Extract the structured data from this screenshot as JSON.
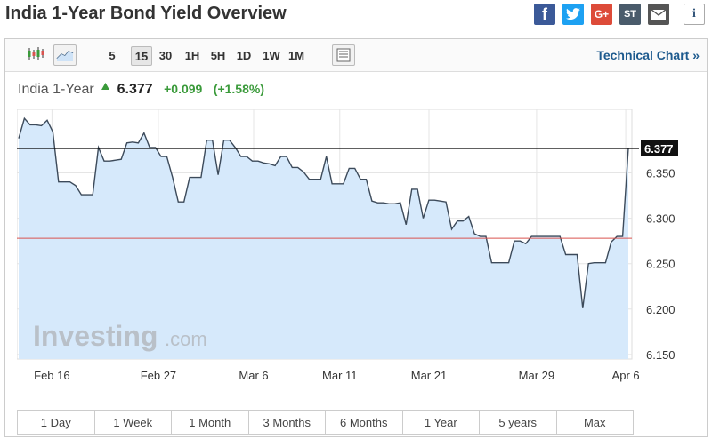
{
  "page_title": "India 1-Year Bond Yield Overview",
  "share": [
    "facebook-icon",
    "twitter-icon",
    "google-plus-icon",
    "stocktwits-icon",
    "email-icon",
    "info-icon"
  ],
  "share_labels": {
    "facebook": "f",
    "google_plus": "G+",
    "stocktwits": "ST",
    "info": "i"
  },
  "toolbar": {
    "intervals": [
      "5",
      "15",
      "30",
      "1H",
      "5H",
      "1D",
      "1W",
      "1M"
    ],
    "selected_interval": "15",
    "technical_chart": "Technical Chart »"
  },
  "quote": {
    "name": "India 1-Year",
    "direction": "up",
    "last": "6.377",
    "change": "+0.099",
    "change_pct": "(+1.58%)"
  },
  "watermark": {
    "brand": "Investing",
    "suffix": ".com"
  },
  "range_tabs": [
    "1 Day",
    "1 Week",
    "1 Month",
    "3 Months",
    "6 Months",
    "1 Year",
    "5 years",
    "Max"
  ],
  "colors": {
    "line": "#3c4a5a",
    "fill": "#d6e9fb",
    "close_line": "#000000",
    "prev_close": "#d9534f",
    "up": "#3a9a3a"
  },
  "chart_data": {
    "type": "area",
    "ylim": [
      6.145,
      6.42
    ],
    "yticks": [
      "6.150",
      "6.200",
      "6.250",
      "6.300",
      "6.350"
    ],
    "xticks": [
      "Feb 16",
      "Feb 27",
      "Mar 6",
      "Mar 11",
      "Mar 21",
      "Mar 29",
      "Apr 6"
    ],
    "last_label": "6.377",
    "last_value": 6.377,
    "previous_close": 6.278,
    "grid": true,
    "values": [
      6.388,
      6.41,
      6.403,
      6.403,
      6.402,
      6.408,
      6.395,
      6.34,
      6.34,
      6.34,
      6.336,
      6.326,
      6.326,
      6.326,
      6.378,
      6.363,
      6.363,
      6.364,
      6.365,
      6.383,
      6.384,
      6.383,
      6.394,
      6.378,
      6.378,
      6.368,
      6.368,
      6.345,
      6.318,
      6.318,
      6.345,
      6.345,
      6.345,
      6.386,
      6.386,
      6.348,
      6.386,
      6.386,
      6.378,
      6.368,
      6.368,
      6.363,
      6.363,
      6.361,
      6.36,
      6.358,
      6.368,
      6.368,
      6.356,
      6.356,
      6.351,
      6.343,
      6.343,
      6.343,
      6.368,
      6.338,
      6.338,
      6.338,
      6.355,
      6.355,
      6.343,
      6.343,
      6.319,
      6.317,
      6.317,
      6.316,
      6.316,
      6.317,
      6.293,
      6.332,
      6.332,
      6.3,
      6.32,
      6.32,
      6.319,
      6.318,
      6.288,
      6.297,
      6.297,
      6.302,
      6.283,
      6.28,
      6.28,
      6.251,
      6.251,
      6.251,
      6.251,
      6.275,
      6.275,
      6.272,
      6.28,
      6.28,
      6.28,
      6.28,
      6.28,
      6.28,
      6.26,
      6.26,
      6.26,
      6.201,
      6.25,
      6.251,
      6.251,
      6.251,
      6.274,
      6.28,
      6.28,
      6.377
    ]
  }
}
